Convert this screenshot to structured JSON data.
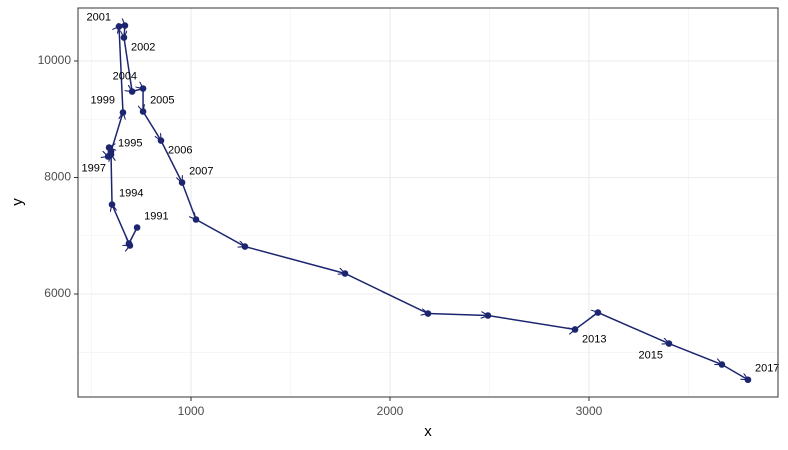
{
  "chart_data": {
    "type": "connected-scatter",
    "xlabel": "x",
    "ylabel": "y",
    "x": [
      729,
      688,
      693,
      603,
      598,
      588,
      583,
      598,
      658,
      638,
      668,
      663,
      704,
      759,
      759,
      849,
      955,
      1025,
      1271,
      1774,
      2191,
      2492,
      2930,
      3045,
      3402,
      3668,
      3799
    ],
    "y": [
      7142,
      6867,
      6833,
      7536,
      8395,
      8515,
      8361,
      8446,
      9116,
      10592,
      10609,
      10403,
      9476,
      9528,
      9133,
      8635,
      7914,
      7279,
      6815,
      6352,
      5665,
      5631,
      5391,
      5682,
      5150,
      4790,
      4528
    ],
    "labels": [
      "1991",
      null,
      null,
      "1994",
      "1995",
      null,
      "1997",
      null,
      "1999",
      null,
      "2001",
      "2002",
      null,
      "2004",
      "2005",
      "2006",
      "2007",
      null,
      null,
      null,
      null,
      null,
      "2013",
      null,
      "2015",
      null,
      "2017"
    ],
    "color": "#1c2570",
    "xlim": [
      432,
      3950
    ],
    "ylim": [
      4232,
      10910
    ],
    "xticks": [
      1000,
      2000,
      3000
    ],
    "yticks": [
      6000,
      8000,
      10000
    ],
    "grid": true
  }
}
